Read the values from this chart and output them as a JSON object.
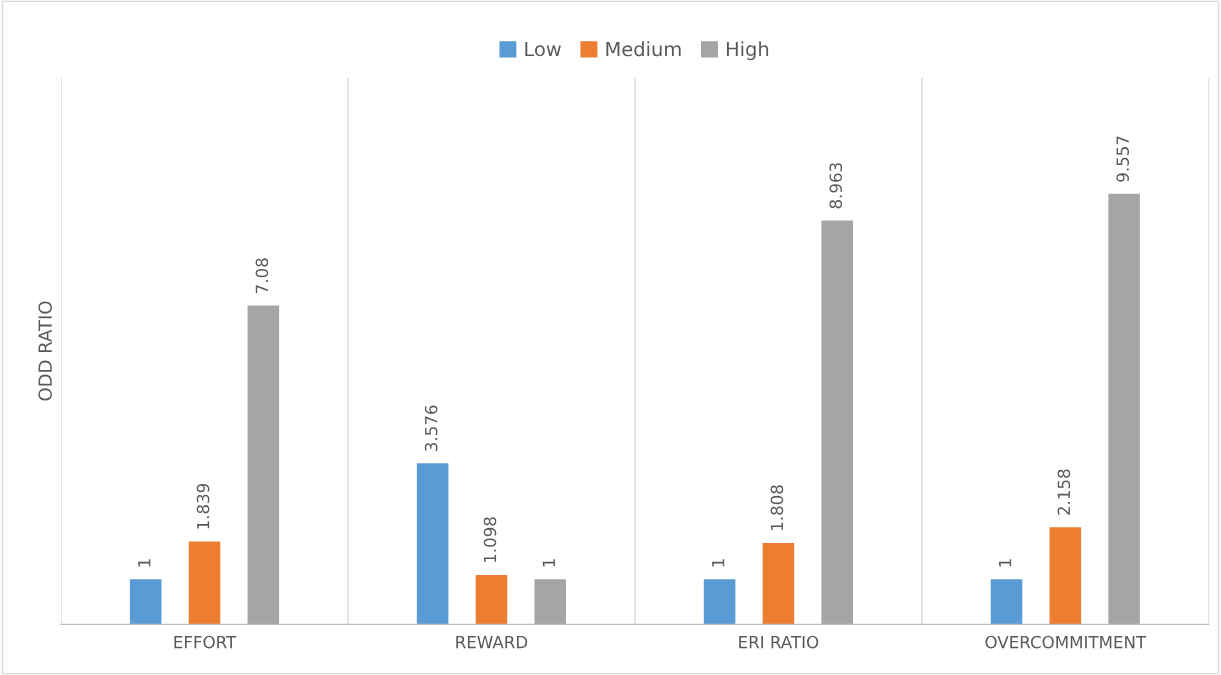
{
  "chart_data": {
    "type": "bar",
    "ylabel": "ODD RATIO",
    "categories": [
      "EFFORT",
      "REWARD",
      "ERI RATIO",
      "OVERCOMMITMENT"
    ],
    "series": [
      {
        "name": "Low",
        "color": "#5b9bd5",
        "values": [
          1,
          3.576,
          1,
          1
        ]
      },
      {
        "name": "Medium",
        "color": "#ed7d31",
        "values": [
          1.839,
          1.098,
          1.808,
          2.158
        ]
      },
      {
        "name": "High",
        "color": "#a5a5a5",
        "values": [
          7.08,
          1,
          8.963,
          9.557
        ]
      }
    ],
    "data_labels": true,
    "legend": "top",
    "grid": "x"
  }
}
